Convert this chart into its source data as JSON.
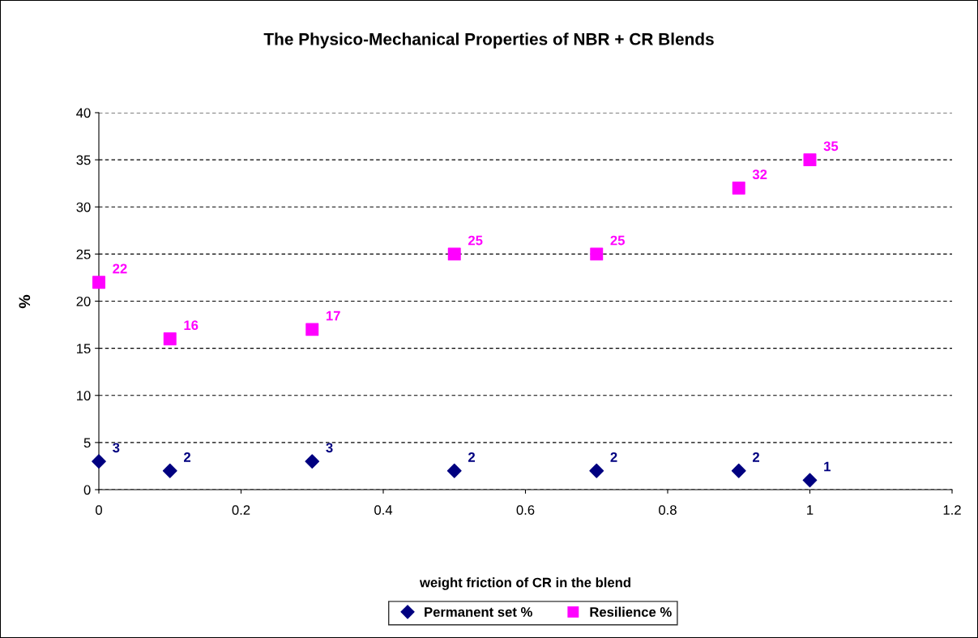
{
  "chart_data": {
    "type": "scatter",
    "title": "The Physico-Mechanical Properties of NBR + CR Blends",
    "xlabel": "weight friction of CR in the blend",
    "ylabel": "%",
    "x": [
      0,
      0.1,
      0.3,
      0.5,
      0.7,
      0.9,
      1
    ],
    "series": [
      {
        "name": "Permanent set %",
        "color": "#000080",
        "marker": "diamond",
        "values": [
          3,
          2,
          3,
          2,
          2,
          2,
          1
        ]
      },
      {
        "name": "Resilience %",
        "color": "#ff00ff",
        "marker": "square",
        "values": [
          22,
          16,
          17,
          25,
          25,
          32,
          35
        ]
      }
    ],
    "xlim": [
      0,
      1.2
    ],
    "xticks": [
      0,
      0.2,
      0.4,
      0.6,
      0.8,
      1,
      1.2
    ],
    "ylim": [
      0,
      40
    ],
    "yticks": [
      0,
      5,
      10,
      15,
      20,
      25,
      30,
      35,
      40
    ],
    "grid": "y",
    "legend": "bottom",
    "data_labels": true
  }
}
